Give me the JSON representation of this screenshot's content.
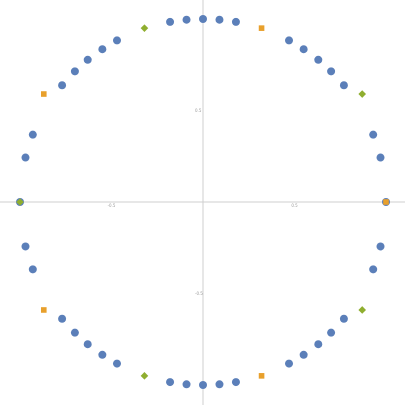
{
  "chart_data": {
    "type": "scatter",
    "title": "",
    "xlabel": "",
    "ylabel": "",
    "xlim": [
      -1.06,
      1.06
    ],
    "ylim": [
      -1.06,
      1.06
    ],
    "grid": false,
    "axes": "through-origin",
    "x_ticks": [
      {
        "value": -0.5,
        "label": "-0.5"
      },
      {
        "value": 0.5,
        "label": "0.5"
      }
    ],
    "y_ticks": [
      {
        "value": 0.5,
        "label": "0.5"
      },
      {
        "value": -0.5,
        "label": "-0.5"
      }
    ],
    "series": [
      {
        "marker": "circle",
        "color": "#5b7fb9",
        "points": [
          [
            0.0,
            1.0
          ],
          [
            -0.09,
            0.996
          ],
          [
            0.09,
            0.996
          ],
          [
            -0.18,
            0.984
          ],
          [
            0.18,
            0.984
          ],
          [
            -0.47,
            0.883
          ],
          [
            0.47,
            0.883
          ],
          [
            -0.55,
            0.835
          ],
          [
            0.55,
            0.835
          ],
          [
            -0.63,
            0.777
          ],
          [
            0.63,
            0.777
          ],
          [
            -0.7,
            0.714
          ],
          [
            0.7,
            0.714
          ],
          [
            -0.77,
            0.638
          ],
          [
            0.77,
            0.638
          ],
          [
            -0.93,
            0.368
          ],
          [
            0.93,
            0.368
          ],
          [
            -0.97,
            0.243
          ],
          [
            0.97,
            0.243
          ],
          [
            -1.0,
            0.0
          ],
          [
            1.0,
            0.0
          ],
          [
            0.0,
            -1.0
          ],
          [
            -0.09,
            -0.996
          ],
          [
            0.09,
            -0.996
          ],
          [
            -0.18,
            -0.984
          ],
          [
            0.18,
            -0.984
          ],
          [
            -0.47,
            -0.883
          ],
          [
            0.47,
            -0.883
          ],
          [
            -0.55,
            -0.835
          ],
          [
            0.55,
            -0.835
          ],
          [
            -0.63,
            -0.777
          ],
          [
            0.63,
            -0.777
          ],
          [
            -0.7,
            -0.714
          ],
          [
            0.7,
            -0.714
          ],
          [
            -0.77,
            -0.638
          ],
          [
            0.77,
            -0.638
          ],
          [
            -0.93,
            -0.368
          ],
          [
            0.93,
            -0.368
          ],
          [
            -0.97,
            -0.243
          ],
          [
            0.97,
            -0.243
          ]
        ]
      },
      {
        "marker": "square",
        "color": "#e8a02c",
        "points": [
          [
            0.32,
            0.95
          ],
          [
            -0.87,
            0.59
          ],
          [
            1.0,
            0.0
          ],
          [
            0.32,
            -0.95
          ],
          [
            -0.87,
            -0.59
          ]
        ]
      },
      {
        "marker": "diamond",
        "color": "#8fae2f",
        "points": [
          [
            -0.32,
            0.95
          ],
          [
            0.87,
            0.59
          ],
          [
            -1.0,
            0.0
          ],
          [
            -0.32,
            -0.95
          ],
          [
            0.87,
            -0.59
          ]
        ]
      }
    ]
  }
}
